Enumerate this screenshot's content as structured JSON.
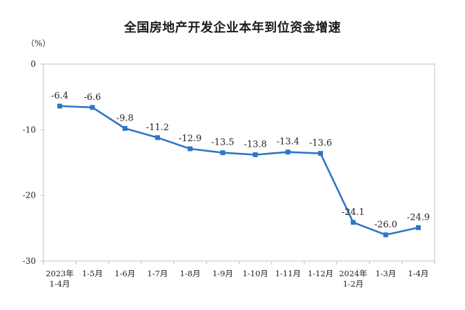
{
  "chart_data": {
    "type": "line",
    "title": "全国房地产开发企业本年到位资金增速",
    "ylabel": "（%）",
    "xlabel": "",
    "categories": [
      [
        "2023年",
        "1-4月"
      ],
      [
        "1-5月"
      ],
      [
        "1-6月"
      ],
      [
        "1-7月"
      ],
      [
        "1-8月"
      ],
      [
        "1-9月"
      ],
      [
        "1-10月"
      ],
      [
        "1-11月"
      ],
      [
        "1-12月"
      ],
      [
        "2024年",
        "1-2月"
      ],
      [
        "1-3月"
      ],
      [
        "1-4月"
      ]
    ],
    "values": [
      -6.4,
      -6.6,
      -9.8,
      -11.2,
      -12.9,
      -13.5,
      -13.8,
      -13.4,
      -13.6,
      -24.1,
      -26.0,
      -24.9
    ],
    "data_labels": [
      "-6.4",
      "-6.6",
      "-9.8",
      "-11.2",
      "-12.9",
      "-13.5",
      "-13.8",
      "-13.4",
      "-13.6",
      "-24.1",
      "-26.0",
      "-24.9"
    ],
    "ylim": [
      -30,
      0
    ],
    "yticks": [
      0,
      -10,
      -20,
      -30
    ],
    "grid": false,
    "line_color": "#2e75c6",
    "marker": "square"
  }
}
